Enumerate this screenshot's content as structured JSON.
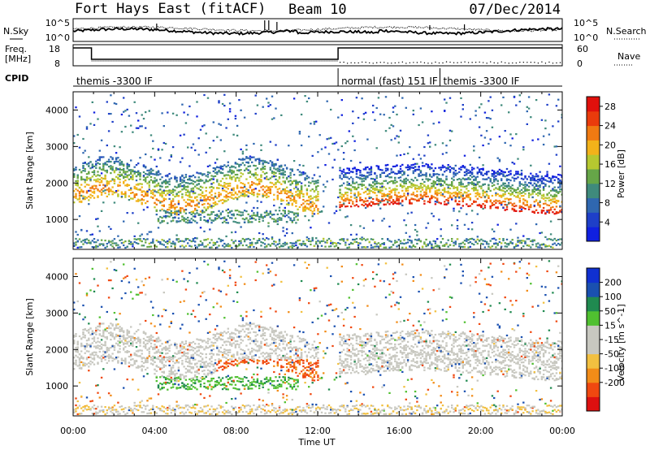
{
  "header": {
    "station": "Fort Hays East (fitACF)",
    "beam": "Beam 10",
    "date": "07/Dec/2014"
  },
  "summary_panels": {
    "nsky_label": "N.Sky",
    "nsearch_label": "N.Search",
    "freq_label_line1": "Freq.",
    "freq_label_line2": "[MHz]",
    "nave_label": "Nave",
    "cpid_label": "CPID",
    "noise_ticks": [
      "10^5",
      "10^0"
    ],
    "noise_right_ticks": [
      "10^5",
      "10^0"
    ],
    "freq_ticks": [
      "18",
      "8"
    ],
    "nave_ticks": [
      "60",
      "0"
    ],
    "modes": [
      {
        "start_hour": 0,
        "label": "themis -3300 IF"
      },
      {
        "start_hour": 13,
        "label": "normal (fast) 151 IF"
      },
      {
        "start_hour": 18,
        "label": "themis -3300 IF"
      }
    ]
  },
  "colors": {
    "power": [
      "#1020e0",
      "#1e3fc8",
      "#2f67b0",
      "#3f8a7c",
      "#66a648",
      "#b6c830",
      "#f2b21a",
      "#f07a12",
      "#ea3b0c",
      "#e0100c"
    ],
    "velocity": [
      "#dd1010",
      "#f04810",
      "#f28c18",
      "#f2c040",
      "#c8c8c0",
      "#c8c8c0",
      "#50c030",
      "#208a50",
      "#1a50b0",
      "#1030d0"
    ]
  },
  "chart_data": [
    {
      "type": "heatmap",
      "panel": "power",
      "xlabel": "Time UT",
      "ylabel": "Slant Range [km]",
      "colorbar_label": "Power [dB]",
      "x_ticks": [
        "00:00",
        "04:00",
        "08:00",
        "12:00",
        "16:00",
        "20:00",
        "00:00"
      ],
      "xlim_hours": [
        0,
        24
      ],
      "ylim_km": [
        180,
        4500
      ],
      "y_ticks": [
        1000,
        2000,
        3000,
        4000
      ],
      "colorbar_ticks": [
        4,
        8,
        12,
        16,
        20,
        24,
        28
      ],
      "colorbar_range": [
        0,
        30
      ],
      "echo_bands": [
        {
          "t_start": 0.0,
          "t_end": 12.0,
          "range_low": 1300,
          "range_high": 2500,
          "power_peak": 22
        },
        {
          "t_start": 13.0,
          "t_end": 24.0,
          "range_low": 900,
          "range_high": 2000,
          "power_peak": 28
        },
        {
          "t_start": 5.0,
          "t_end": 12.0,
          "range_low": 1000,
          "range_high": 1500,
          "power_peak": 14
        }
      ]
    },
    {
      "type": "heatmap",
      "panel": "velocity",
      "xlabel": "Time UT",
      "ylabel": "Slant Range [km]",
      "colorbar_label": "Velocity [m s^-1]",
      "x_ticks": [
        "00:00",
        "04:00",
        "08:00",
        "12:00",
        "16:00",
        "20:00",
        "00:00"
      ],
      "xlim_hours": [
        0,
        24
      ],
      "ylim_km": [
        180,
        4500
      ],
      "y_ticks": [
        1000,
        2000,
        3000,
        4000
      ],
      "colorbar_ticks": [
        200,
        100,
        50,
        15,
        -15,
        -50,
        -100,
        -200
      ],
      "colorbar_range": [
        -250,
        250
      ],
      "echo_bands": [
        {
          "t_start": 0.0,
          "t_end": 12.0,
          "range_low": 1300,
          "range_high": 2500,
          "velocity_typical": 0
        },
        {
          "t_start": 7.0,
          "t_end": 12.5,
          "range_low": 900,
          "range_high": 1600,
          "velocity_typical": -120
        },
        {
          "t_start": 4.0,
          "t_end": 9.0,
          "range_low": 800,
          "range_high": 1200,
          "velocity_typical": 40
        }
      ]
    }
  ]
}
